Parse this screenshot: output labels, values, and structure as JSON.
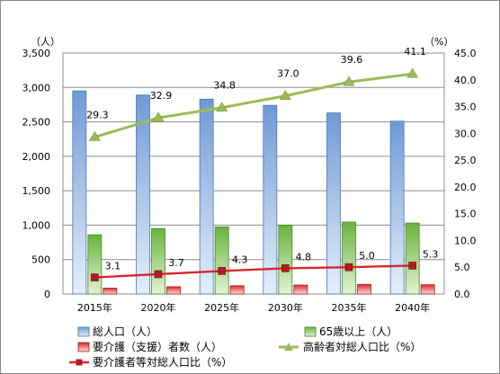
{
  "chart_data": {
    "type": "bar",
    "categories": [
      "2015年",
      "2020年",
      "2025年",
      "2030年",
      "2035年",
      "2040年"
    ],
    "series": [
      {
        "name": "総人口（人）",
        "type": "bar",
        "axis": "left",
        "color": "#8eb4e3",
        "values": [
          2950,
          2890,
          2830,
          2740,
          2630,
          2510
        ]
      },
      {
        "name": "65歳以上（人）",
        "type": "bar",
        "axis": "left",
        "color": "#77c34a",
        "values": [
          860,
          950,
          975,
          1000,
          1045,
          1030
        ]
      },
      {
        "name": "要介護（支援）者数（人）",
        "type": "bar",
        "axis": "left",
        "color": "#e8393b",
        "values": [
          85,
          105,
          120,
          130,
          140,
          135
        ]
      },
      {
        "name": "高齢者対総人口比（%）",
        "type": "line",
        "axis": "right",
        "color": "#9bbb59",
        "marker": "triangle",
        "values": [
          29.3,
          32.9,
          34.8,
          37.0,
          39.6,
          41.1
        ],
        "labels": [
          "29.3",
          "32.9",
          "34.8",
          "37.0",
          "39.6",
          "41.1"
        ]
      },
      {
        "name": "要介護者等対総人口比（%）",
        "type": "line",
        "axis": "right",
        "color": "#d9262c",
        "marker": "square",
        "values": [
          3.1,
          3.7,
          4.3,
          4.8,
          5.0,
          5.3
        ],
        "labels": [
          "3.1",
          "3.7",
          "4.3",
          "4.8",
          "5.0",
          "5.3"
        ]
      }
    ],
    "y_left": {
      "unit": "（人）",
      "ylim": [
        0,
        3500
      ],
      "ticks": [
        "0",
        "500",
        "1,000",
        "1,500",
        "2,000",
        "2,500",
        "3,000",
        "3,500"
      ]
    },
    "y_right": {
      "unit": "（%）",
      "ylim": [
        0,
        45
      ],
      "ticks": [
        "0.0",
        "5.0",
        "10.0",
        "15.0",
        "20.0",
        "25.0",
        "30.0",
        "35.0",
        "40.0",
        "45.0"
      ]
    },
    "grid": true,
    "legend_position": "bottom"
  }
}
